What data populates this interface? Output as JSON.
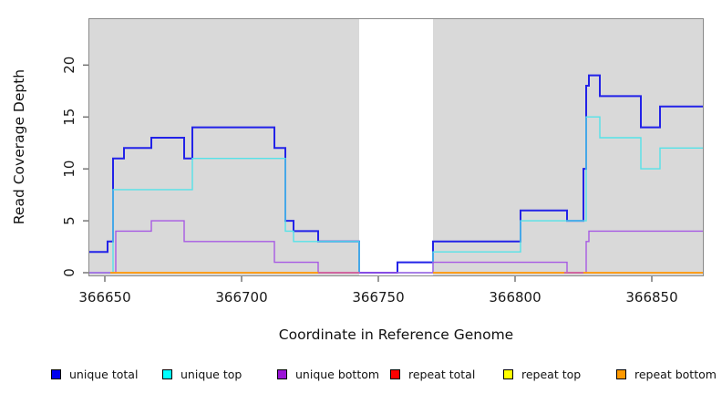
{
  "chart_data": {
    "type": "line",
    "style": "step-coverage",
    "title": "",
    "xlabel": "Coordinate in Reference Genome",
    "ylabel": "Read Coverage Depth",
    "x_domain": [
      366644,
      366869
    ],
    "y_domain": [
      0,
      24.5
    ],
    "x_ticks": [
      366650,
      366700,
      366750,
      366800,
      366850
    ],
    "y_ticks": [
      0,
      5,
      10,
      15,
      20
    ],
    "grid": false,
    "plot_bg": "#d9d9d9",
    "gap_region": {
      "start": 366743,
      "end": 366770,
      "color": "#ffffff"
    },
    "series": [
      {
        "name": "unique total",
        "color": "#2222e8",
        "width": 2,
        "segments": [
          [
            [
              366644,
              2
            ],
            [
              366651,
              3
            ],
            [
              366653,
              11
            ],
            [
              366657,
              12
            ],
            [
              366667,
              13
            ],
            [
              366679,
              11
            ],
            [
              366682,
              14
            ],
            [
              366712,
              12
            ],
            [
              366716,
              5
            ],
            [
              366719,
              4
            ],
            [
              366728,
              3
            ],
            [
              366743,
              0
            ],
            [
              366757,
              1
            ],
            [
              366770,
              3
            ],
            [
              366802,
              6
            ],
            [
              366819,
              5
            ],
            [
              366825,
              10
            ],
            [
              366826,
              18
            ],
            [
              366827,
              19
            ],
            [
              366831,
              17
            ],
            [
              366846,
              14
            ],
            [
              366853,
              16
            ],
            [
              366869,
              16
            ]
          ]
        ]
      },
      {
        "name": "unique top",
        "color": "#55e2e8",
        "width": 1.4,
        "segments": [
          [
            [
              366644,
              0
            ],
            [
              366653,
              8
            ],
            [
              366682,
              11
            ],
            [
              366716,
              4
            ],
            [
              366719,
              3
            ],
            [
              366743,
              0
            ]
          ],
          [
            [
              366757,
              0
            ],
            [
              366770,
              2
            ],
            [
              366802,
              5
            ],
            [
              366826,
              15
            ],
            [
              366831,
              13
            ],
            [
              366846,
              10
            ],
            [
              366853,
              12
            ],
            [
              366869,
              12
            ]
          ]
        ]
      },
      {
        "name": "unique bottom",
        "color": "#a75ae3",
        "width": 1.4,
        "segments": [
          [
            [
              366644,
              0
            ],
            [
              366654,
              4
            ],
            [
              366667,
              5
            ],
            [
              366679,
              3
            ],
            [
              366712,
              1
            ],
            [
              366728,
              0
            ],
            [
              366770,
              1
            ],
            [
              366819,
              0
            ],
            [
              366826,
              3
            ],
            [
              366827,
              4
            ],
            [
              366869,
              4
            ]
          ]
        ]
      },
      {
        "name": "repeat total",
        "color": "#ee1111",
        "width": 1.4,
        "segments": [
          [
            [
              366652,
              0
            ],
            [
              366743,
              0
            ]
          ],
          [
            [
              366770,
              0
            ],
            [
              366869,
              0
            ]
          ]
        ]
      },
      {
        "name": "repeat top",
        "color": "#ffee00",
        "width": 1.4,
        "segments": [
          [
            [
              366652,
              0
            ],
            [
              366743,
              0
            ]
          ],
          [
            [
              366770,
              0
            ],
            [
              366869,
              0
            ]
          ]
        ]
      },
      {
        "name": "repeat bottom",
        "color": "#ff9712",
        "width": 1.6,
        "segments": [
          [
            [
              366652,
              0
            ],
            [
              366743,
              0
            ]
          ],
          [
            [
              366770,
              0
            ],
            [
              366869,
              0
            ]
          ]
        ]
      }
    ],
    "overlap_marks": [
      {
        "from": 366728,
        "to": 366743,
        "value": 0,
        "color": "#c455c8"
      },
      {
        "from": 366818,
        "to": 366825,
        "value": 0,
        "color": "#c455c8"
      }
    ],
    "legend": [
      {
        "label": "unique total",
        "color": "#0000ee"
      },
      {
        "label": "unique top",
        "color": "#00ffff"
      },
      {
        "label": "unique bottom",
        "color": "#9a14d6"
      },
      {
        "label": "repeat total",
        "color": "#ff0000"
      },
      {
        "label": "repeat top",
        "color": "#ffff00"
      },
      {
        "label": "repeat bottom",
        "color": "#ff9900"
      }
    ],
    "legend_position": "bottom",
    "axis_color": "#333333",
    "box_color": "#8a8a8a",
    "text_color": "#1a1a1a"
  }
}
